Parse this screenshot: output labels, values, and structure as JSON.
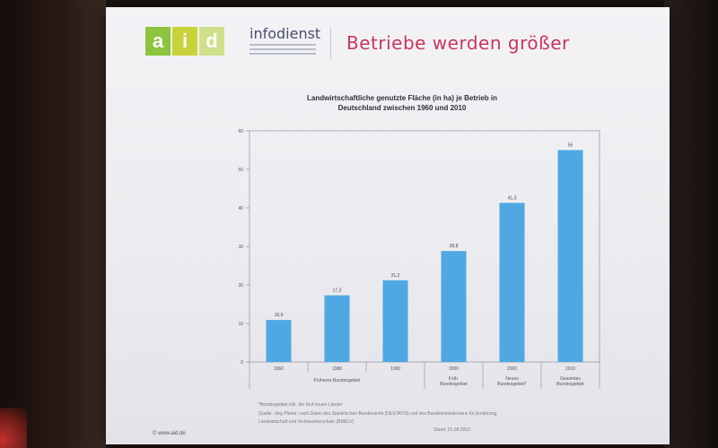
{
  "slide": {
    "logo_letters": [
      "a",
      "i",
      "d"
    ],
    "logo_colors": [
      "#8cc43d",
      "#c8d33b",
      "#cfe08a"
    ],
    "brand": "infodienst",
    "title": "Betriebe werden größer",
    "title_color": "#c7365c",
    "footnote_1": "*Bundesgebiet inkl. der fünf neuen Länder",
    "footnote_2": "Quelle: Jörg Plener, nach Daten des Statistischen Bundesamts (DESTATIS) und des Bundesministeriums für Ernährung,",
    "footnote_3": "Landwirtschaft und Verbraucherschutz (BMELV)",
    "stand": "Stand: 01.06.2010",
    "website": "© www.aid.de"
  },
  "chart_data": {
    "type": "bar",
    "title_line1": "Landwirtschaftliche genutzte Fläche (in ha) je Betrieb in",
    "title_line2": "Deutschland zwischen 1960 und 2010",
    "categories": [
      "1960",
      "1980",
      "1990",
      "2000",
      "2000",
      "2010"
    ],
    "values": [
      10.9,
      17.3,
      21.2,
      28.8,
      41.3,
      55
    ],
    "value_labels": [
      "10,9",
      "17,3",
      "21,2",
      "28,8",
      "41,3",
      "55"
    ],
    "group_labels": [
      {
        "text": "Früheres Bundesgebiet",
        "span": [
          0,
          2
        ]
      },
      {
        "text": "Früh. Bundesgebiet",
        "span": [
          3,
          3
        ]
      },
      {
        "text": "Neues Bundesgebiet*",
        "span": [
          4,
          4
        ]
      },
      {
        "text": "Gesamtes Bundesgebiet",
        "span": [
          5,
          5
        ]
      }
    ],
    "yticks": [
      0,
      10,
      20,
      30,
      40,
      50,
      60
    ],
    "ylim": [
      0,
      60
    ],
    "bar_color": "#4fa8e3",
    "grid": false
  }
}
